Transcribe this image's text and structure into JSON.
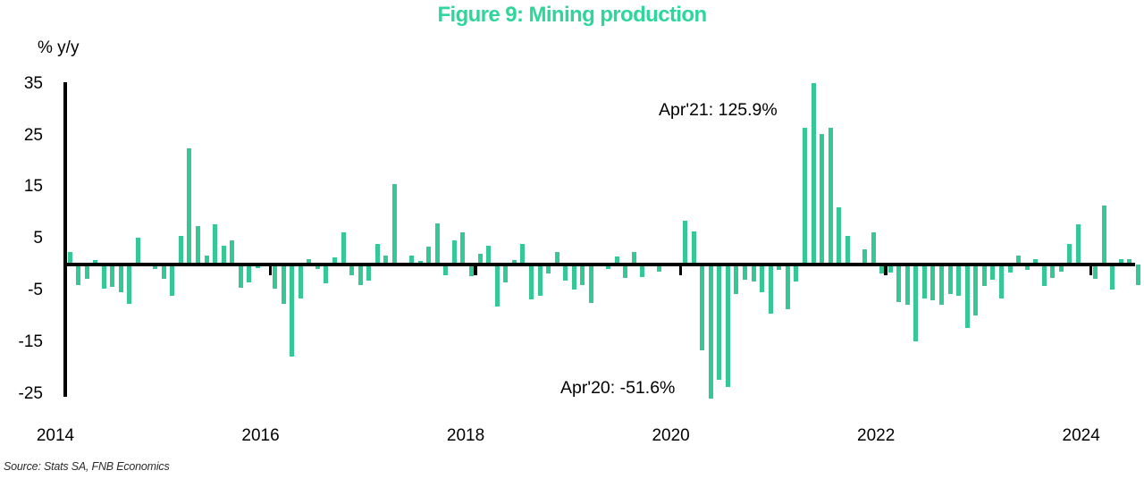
{
  "title": "Figure 9: Mining production",
  "y_axis_unit_label": "% y/y",
  "y_tick_labels": [
    "35",
    "25",
    "15",
    "5",
    "-5",
    "-15",
    "-25"
  ],
  "x_axis_labels": [
    "2014",
    "2016",
    "2018",
    "2020",
    "2022",
    "2024"
  ],
  "annotations": {
    "apr21": "Apr'21: 125.9%",
    "apr20": "Apr'20: -51.6%"
  },
  "source": "Source: Stats SA, FNB Economics",
  "colors": {
    "bar": "#35c794",
    "title": "#2ed69b",
    "axis": "#000000",
    "source_text": "#2b2b2b"
  },
  "chart_data": {
    "type": "bar",
    "title": "Figure 9: Mining production",
    "ylabel": "% y/y",
    "frequency": "monthly",
    "start_month": "2014-01",
    "end_month": "2024-06",
    "ylim": [
      -26,
      35.5
    ],
    "grid": false,
    "y_ticks": [
      35,
      25,
      15,
      5,
      -5,
      -15,
      -25
    ],
    "x_tick_years": [
      2014,
      2016,
      2018,
      2020,
      2022,
      2024
    ],
    "clipped_points": [
      {
        "month": "2020-04",
        "value": -51.6,
        "drawn_at": -26.0,
        "label": "Apr'20: -51.6%"
      },
      {
        "month": "2021-04",
        "value": 125.9,
        "drawn_at": 35.2,
        "label": "Apr'21: 125.9%"
      }
    ],
    "values": [
      2.4,
      -4.0,
      -2.7,
      0.9,
      -4.7,
      -4.4,
      -5.3,
      -7.6,
      5.2,
      0.0,
      -0.9,
      -2.8,
      -6.1,
      5.5,
      22.5,
      7.5,
      1.7,
      7.7,
      3.6,
      4.6,
      -4.5,
      -3.5,
      -0.7,
      0.0,
      -4.7,
      -7.6,
      -17.8,
      -6.5,
      1.0,
      -0.8,
      -3.6,
      1.3,
      6.2,
      -2.1,
      -4.0,
      -3.1,
      3.9,
      1.8,
      15.5,
      0.0,
      1.8,
      0.7,
      3.5,
      8.0,
      -2.0,
      4.6,
      6.2,
      -2.3,
      2.1,
      3.7,
      -8.1,
      -3.5,
      0.9,
      4.0,
      -6.7,
      -6.1,
      -1.7,
      2.4,
      -3.2,
      -4.9,
      -3.9,
      -7.5,
      0.0,
      -0.9,
      1.6,
      -2.6,
      2.4,
      -2.5,
      0.0,
      -1.4,
      0.0,
      0.0,
      8.4,
      6.4,
      -16.6,
      -51.6,
      -22.3,
      -23.7,
      -5.7,
      -3.0,
      -3.3,
      -5.4,
      -9.5,
      -1.0,
      -8.6,
      -3.3,
      26.4,
      125.9,
      25.2,
      26.5,
      11.1,
      5.6,
      0.0,
      3.0,
      6.3,
      -1.7,
      -1.5,
      -7.3,
      -7.7,
      -14.9,
      -6.6,
      -7.0,
      -7.8,
      -5.7,
      -6.0,
      -12.2,
      -9.9,
      -4.2,
      -3.0,
      -6.6,
      -1.5,
      1.8,
      -1.1,
      1.0,
      -4.2,
      -2.6,
      -1.4,
      4.0,
      7.7,
      0.3,
      -2.7,
      11.4,
      -4.8,
      1.0,
      1.0,
      -3.9
    ]
  }
}
